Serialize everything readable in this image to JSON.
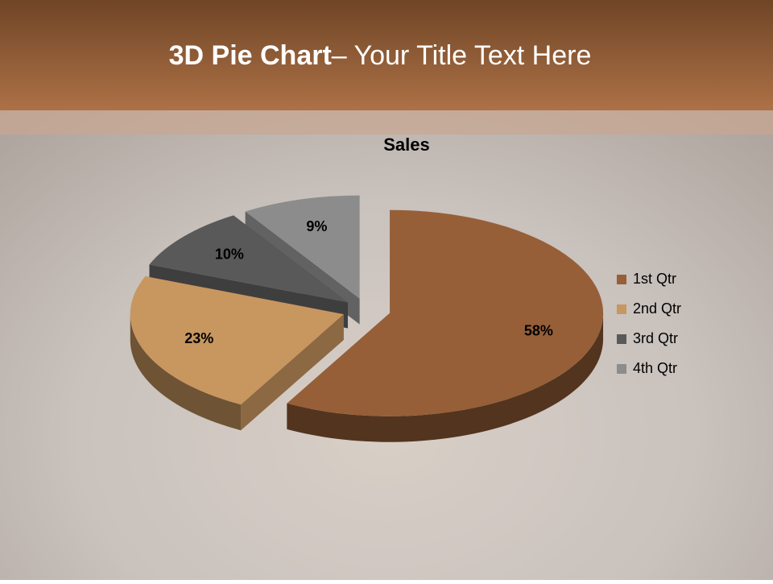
{
  "header": {
    "title_bold": "3D Pie Chart",
    "title_rest": "– Your Title Text Here"
  },
  "chart_data": {
    "type": "pie",
    "title": "Sales",
    "categories": [
      "1st Qtr",
      "2nd Qtr",
      "3rd Qtr",
      "4th Qtr"
    ],
    "values": [
      58,
      23,
      10,
      9
    ],
    "value_labels": [
      "58%",
      "23%",
      "10%",
      "9%"
    ],
    "colors": [
      "#965f38",
      "#c8965f",
      "#595959",
      "#8c8c8c"
    ],
    "legend": "right"
  }
}
